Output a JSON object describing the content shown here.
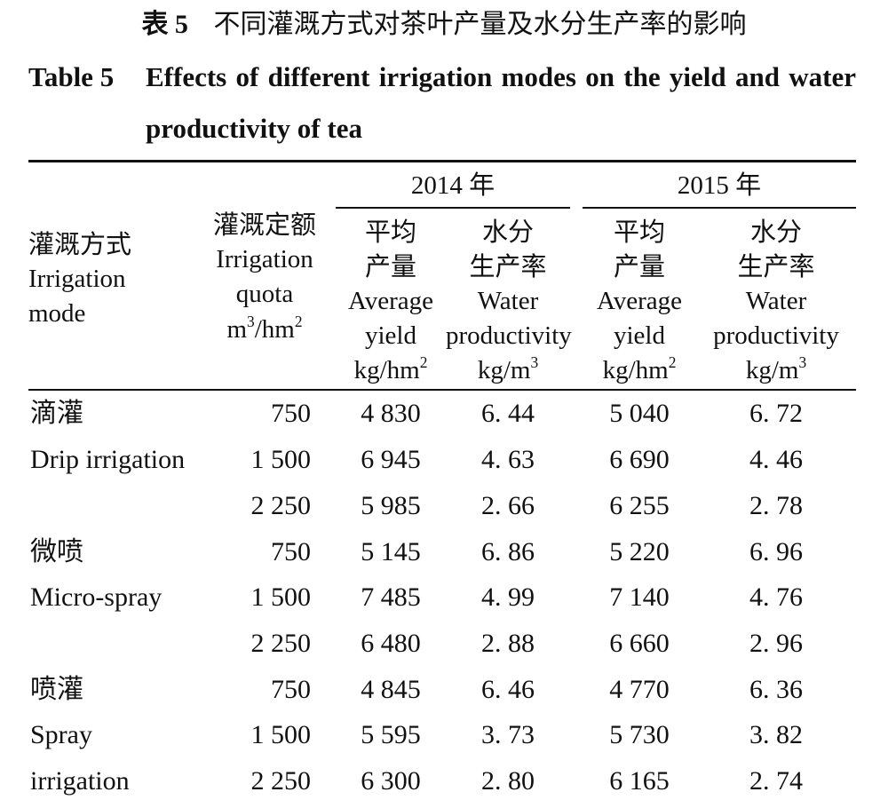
{
  "caption": {
    "cn_label": "表 5",
    "cn_title": "不同灌溉方式对茶叶产量及水分生产率的影响",
    "en_label": "Table 5",
    "en_title_line1": "Effects of different irrigation modes on the yield and water",
    "en_title_line2": "productivity of tea"
  },
  "header": {
    "year1": "2014 年",
    "year2": "2015 年",
    "mode_cn": "灌溉方式",
    "mode_en1": "Irrigation",
    "mode_en2": "mode",
    "quota_cn": "灌溉定额",
    "quota_en1": "Irrigation",
    "quota_en2": "quota",
    "quota_unit_a": "m",
    "quota_unit_sup": "3",
    "quota_unit_b": "/hm",
    "quota_unit_sup2": "2",
    "yield_cn1": "平均",
    "yield_cn2": "产量",
    "yield_en1": "Average",
    "yield_en2": "yield",
    "yield_unit": "kg/hm",
    "yield_unit_sup": "2",
    "wp_cn1": "水分",
    "wp_cn2": "生产率",
    "wp_en1": "Water",
    "wp_en2": "productivity",
    "wp_unit": "kg/m",
    "wp_unit_sup": "3"
  },
  "rows": [
    {
      "mode": "滴灌",
      "quota": "750",
      "y14": "4 830",
      "w14": "6. 44",
      "y15": "5 040",
      "w15": "6. 72"
    },
    {
      "mode": "Drip irrigation",
      "quota": "1 500",
      "y14": "6 945",
      "w14": "4. 63",
      "y15": "6 690",
      "w15": "4. 46"
    },
    {
      "mode": "",
      "quota": "2 250",
      "y14": "5 985",
      "w14": "2. 66",
      "y15": "6 255",
      "w15": "2. 78"
    },
    {
      "mode": "微喷",
      "quota": "750",
      "y14": "5 145",
      "w14": "6. 86",
      "y15": "5 220",
      "w15": "6. 96"
    },
    {
      "mode": "Micro-spray",
      "quota": "1 500",
      "y14": "7 485",
      "w14": "4. 99",
      "y15": "7 140",
      "w15": "4. 76"
    },
    {
      "mode": "",
      "quota": "2 250",
      "y14": "6 480",
      "w14": "2. 88",
      "y15": "6 660",
      "w15": "2. 96"
    },
    {
      "mode": "喷灌",
      "quota": "750",
      "y14": "4 845",
      "w14": "6. 46",
      "y15": "4 770",
      "w15": "6. 36"
    },
    {
      "mode": "Spray",
      "quota": "1 500",
      "y14": "5 595",
      "w14": "3. 73",
      "y15": "5 730",
      "w15": "3. 82"
    },
    {
      "mode": "irrigation",
      "quota": "2 250",
      "y14": "6 300",
      "w14": "2. 80",
      "y15": "6 165",
      "w15": "2. 74"
    }
  ]
}
